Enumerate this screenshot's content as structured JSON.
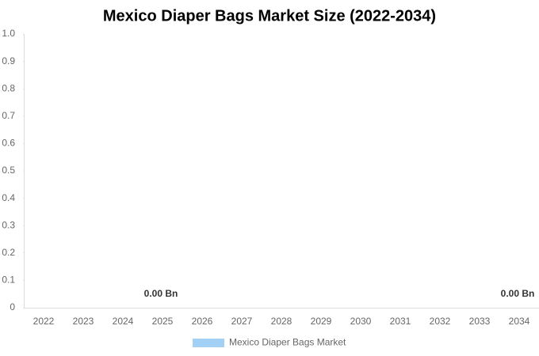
{
  "chart_data": {
    "type": "bar",
    "title": "Mexico Diaper Bags Market Size (2022-2034)",
    "categories": [
      "2022",
      "2023",
      "2024",
      "2025",
      "2026",
      "2027",
      "2028",
      "2029",
      "2030",
      "2031",
      "2032",
      "2033",
      "2034"
    ],
    "series": [
      {
        "name": "Mexico Diaper Bags Market",
        "color": "#a3d0f5",
        "values": [
          0,
          0,
          0,
          0,
          0,
          0,
          0,
          0,
          0,
          0,
          0,
          0,
          0
        ],
        "value_labels": [
          null,
          null,
          null,
          "0.00 Bn",
          null,
          null,
          null,
          null,
          null,
          null,
          null,
          null,
          "0.00 Bn"
        ]
      }
    ],
    "ylim": [
      0,
      1
    ],
    "yticks": [
      0,
      0.1,
      0.2,
      0.3,
      0.4,
      0.5,
      0.6,
      0.7,
      0.8,
      0.9,
      {
        "value": 1,
        "label": "1.0"
      }
    ],
    "grid": false,
    "legend": "bottom"
  }
}
